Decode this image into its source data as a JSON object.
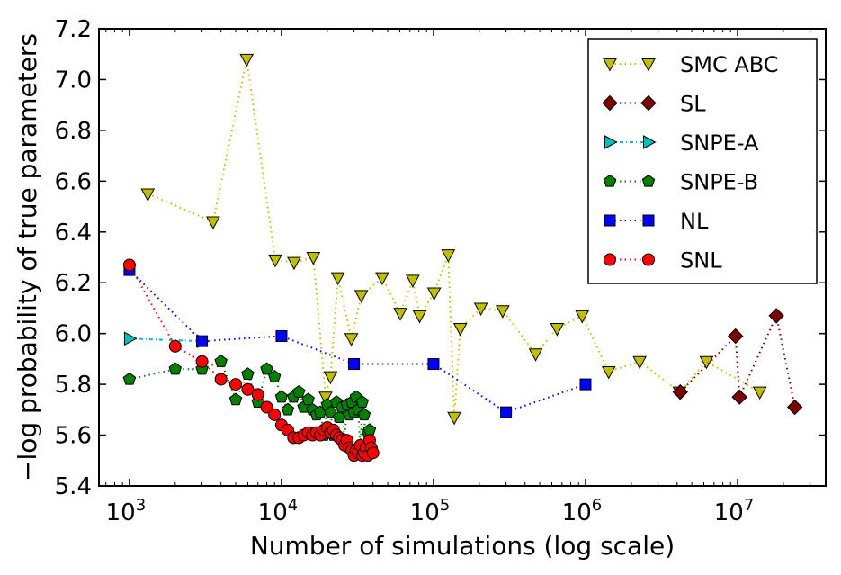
{
  "chart_data": {
    "type": "line",
    "xlabel": "Number of simulations (log scale)",
    "ylabel": "−log probability of true parameters",
    "xscale": "log",
    "xlim": [
      630,
      38000000
    ],
    "ylim": [
      5.4,
      7.2
    ],
    "xticks": [
      {
        "value": 1000,
        "base": "10",
        "exp": "3"
      },
      {
        "value": 10000,
        "base": "10",
        "exp": "4"
      },
      {
        "value": 100000,
        "base": "10",
        "exp": "5"
      },
      {
        "value": 1000000,
        "base": "10",
        "exp": "6"
      },
      {
        "value": 10000000,
        "base": "10",
        "exp": "7"
      }
    ],
    "yticks": [
      "5.4",
      "5.6",
      "5.8",
      "6.0",
      "6.2",
      "6.4",
      "6.6",
      "6.8",
      "7.0",
      "7.2"
    ],
    "legend_position": "top-right",
    "series": [
      {
        "name": "SMC ABC",
        "marker": "triangle-down",
        "color": "#bfbf00",
        "x": [
          1320,
          3550,
          5900,
          9100,
          12100,
          16200,
          19500,
          21000,
          23500,
          28800,
          33500,
          46000,
          60500,
          73000,
          81000,
          101000,
          125000,
          137000,
          150000,
          205000,
          285000,
          470000,
          650000,
          950000,
          1420000,
          2270000,
          4150000,
          6250000,
          14000000
        ],
        "values": [
          6.55,
          6.44,
          7.08,
          6.29,
          6.28,
          6.3,
          5.75,
          5.83,
          6.22,
          5.98,
          6.15,
          6.22,
          6.08,
          6.21,
          6.07,
          6.16,
          6.31,
          5.67,
          6.02,
          6.1,
          6.09,
          5.92,
          6.02,
          6.07,
          5.85,
          5.89,
          5.77,
          5.89,
          5.77
        ]
      },
      {
        "name": "SL",
        "marker": "diamond",
        "color": "#7f0000",
        "x": [
          4200000,
          9700000,
          10300000,
          18000000,
          23800000
        ],
        "values": [
          5.77,
          5.99,
          5.75,
          6.07,
          5.71
        ]
      },
      {
        "name": "SNPE-A",
        "marker": "triangle-right",
        "color": "#00bfbf",
        "x": [
          1000,
          3000
        ],
        "values": [
          5.98,
          5.97
        ]
      },
      {
        "name": "SNPE-B",
        "marker": "pentagon",
        "color": "#007f00",
        "x": [
          1000,
          2000,
          3000,
          4000,
          5000,
          6000,
          7000,
          8000,
          9000,
          10000,
          11000,
          12000,
          13000,
          14000,
          15000,
          16000,
          17000,
          18000,
          19000,
          20000,
          21000,
          22000,
          23000,
          24000,
          25000,
          26000,
          27000,
          28000,
          29000,
          30000,
          31000,
          32000,
          33000,
          34000,
          35000,
          36000,
          37000,
          38000
        ],
        "values": [
          5.82,
          5.86,
          5.86,
          5.89,
          5.74,
          5.84,
          5.73,
          5.86,
          5.83,
          5.75,
          5.7,
          5.75,
          5.77,
          5.71,
          5.74,
          5.7,
          5.68,
          5.69,
          5.6,
          5.72,
          5.69,
          5.6,
          5.73,
          5.67,
          5.71,
          5.58,
          5.72,
          5.68,
          5.73,
          5.69,
          5.75,
          5.7,
          5.55,
          5.73,
          5.68,
          5.52,
          5.61,
          5.62
        ]
      },
      {
        "name": "NL",
        "marker": "square",
        "color": "#0000ff",
        "x": [
          1000,
          3000,
          10000,
          30000,
          100000,
          300000,
          1000000
        ],
        "values": [
          6.25,
          5.97,
          5.99,
          5.88,
          5.88,
          5.69,
          5.8
        ]
      },
      {
        "name": "SNL",
        "marker": "circle",
        "color": "#ff0000",
        "x": [
          1000,
          2000,
          3000,
          4000,
          5000,
          6000,
          7000,
          8000,
          9000,
          10000,
          11000,
          12000,
          13000,
          14000,
          15000,
          16000,
          17000,
          18000,
          19000,
          20000,
          21000,
          22000,
          23000,
          24000,
          25000,
          26000,
          27000,
          28000,
          29000,
          30000,
          31000,
          32000,
          33000,
          34000,
          35000,
          36000,
          37000,
          38000,
          39000,
          40000
        ],
        "values": [
          6.27,
          5.95,
          5.89,
          5.82,
          5.8,
          5.78,
          5.76,
          5.71,
          5.68,
          5.64,
          5.62,
          5.59,
          5.59,
          5.6,
          5.61,
          5.6,
          5.61,
          5.6,
          5.62,
          5.63,
          5.61,
          5.62,
          5.6,
          5.59,
          5.58,
          5.56,
          5.58,
          5.55,
          5.54,
          5.52,
          5.54,
          5.53,
          5.56,
          5.52,
          5.53,
          5.55,
          5.52,
          5.58,
          5.55,
          5.53
        ]
      }
    ]
  }
}
